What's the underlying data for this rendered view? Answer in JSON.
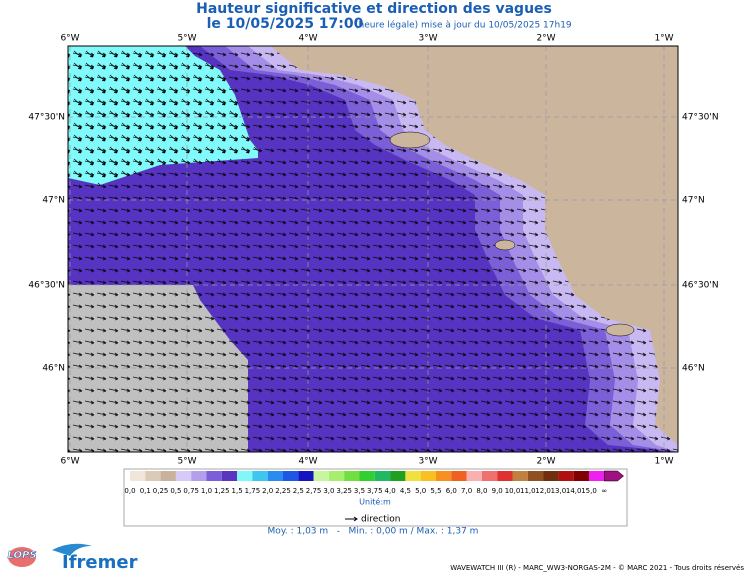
{
  "header": {
    "title": "Hauteur significative et direction des vagues",
    "date": "le 10/05/2025 17:00",
    "note": "(heure légale) mise à jour du 10/05/2025 17h19"
  },
  "map": {
    "lon_labels": [
      "6°W",
      "5°W",
      "4°W",
      "3°W",
      "2°W",
      "1°W"
    ],
    "lat_labels": [
      "47°30'N",
      "47°N",
      "46°30'N",
      "46°N"
    ]
  },
  "legend": {
    "labels": [
      "0,0",
      "0,1",
      "0,25",
      "0,5",
      "0,75",
      "1,0",
      "1,25",
      "1,5",
      "1,75",
      "2,0",
      "2,25",
      "2,5",
      "2,75",
      "3,0",
      "3,25",
      "3,5",
      "3,75",
      "4,0",
      "4,5",
      "5,0",
      "5,5",
      "6,0",
      "7,0",
      "8,0",
      "9,0",
      "10,0",
      "11,0",
      "12,0",
      "13,0",
      "14,0",
      "15,0",
      "∞"
    ],
    "colors": [
      "#f2e6da",
      "#dccab8",
      "#c8b29c",
      "#d8caf6",
      "#b39fec",
      "#7c5fd8",
      "#5a35c2",
      "#80f8f8",
      "#3ec6f0",
      "#2a8cf0",
      "#1e56e6",
      "#1414c0",
      "#c8f6a0",
      "#a6ee6e",
      "#70e040",
      "#30d030",
      "#20b860",
      "#20a020",
      "#f0e040",
      "#f8c020",
      "#f89020",
      "#f06020",
      "#f8b0b0",
      "#f07070",
      "#e03030",
      "#c08040",
      "#905020",
      "#703010",
      "#b01010",
      "#800000",
      "#f020f0",
      "#a01080"
    ],
    "unit": "Unité:m",
    "direction": "direction"
  },
  "stats": "Moy. : 1,03 m   -   Min. : 0,00 m / Max. : 1,37 m",
  "logos": {
    "lops": "LOPS",
    "ifremer": "Ifremer"
  },
  "footer": "WAVEWATCH III (R) - MARC_WW3-NORGAS-2M - © MARC 2021 - Tous droits réservés"
}
